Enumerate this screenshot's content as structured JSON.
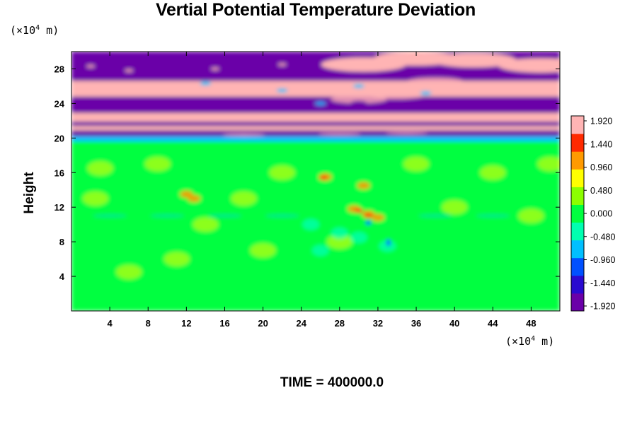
{
  "chart_data": {
    "type": "heatmap",
    "title": "Vertial Potential Temperature Deviation",
    "ylabel": "Height",
    "xlabel": "",
    "x_unit": {
      "prefix": "(×10",
      "exponent": "4",
      "suffix": " m)"
    },
    "y_unit": {
      "prefix": "(×10",
      "exponent": "4",
      "suffix": " m)"
    },
    "xlim": [
      0,
      51
    ],
    "ylim": [
      0,
      30
    ],
    "x_ticks": [
      4,
      8,
      12,
      16,
      20,
      24,
      28,
      32,
      36,
      40,
      44,
      48
    ],
    "y_ticks": [
      4,
      8,
      12,
      16,
      20,
      24,
      28
    ],
    "colorbar": {
      "range": [
        -1.92,
        1.92
      ],
      "tick_labels": [
        "1.920",
        "1.440",
        "0.960",
        "0.480",
        "0.000",
        "-0.480",
        "-0.960",
        "-1.440",
        "-1.920"
      ],
      "colors": [
        "#6a00a8",
        "#2a0ad0",
        "#0050ff",
        "#00bfff",
        "#00ffb0",
        "#00ff40",
        "#8cff00",
        "#ffff00",
        "#ff9a00",
        "#ff2a00",
        "#ffb4b4"
      ]
    },
    "footer": "TIME = 400000.0"
  }
}
